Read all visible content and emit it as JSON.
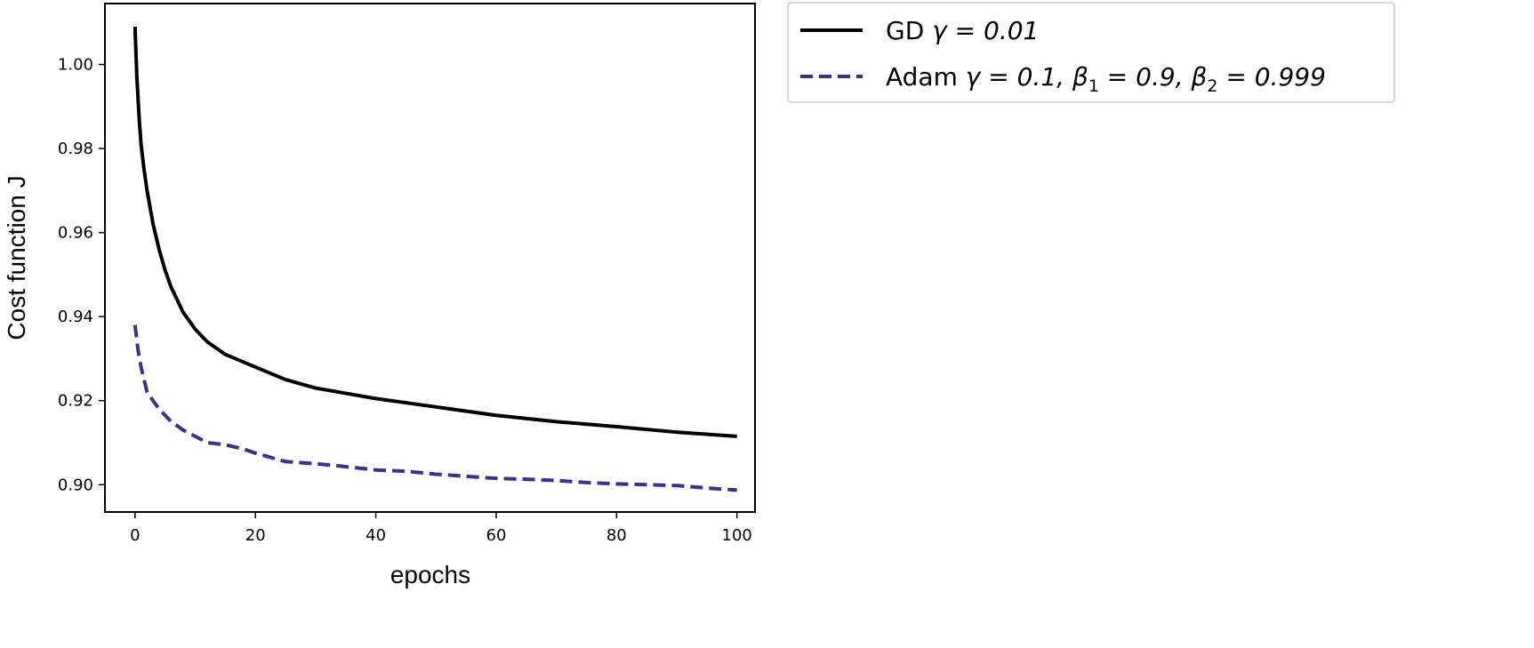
{
  "chart_data": {
    "type": "line",
    "xlabel": "epochs",
    "ylabel": "Cost function J",
    "xlim": [
      -5,
      103
    ],
    "ylim": [
      0.8935,
      1.0145
    ],
    "x_ticks": [
      0,
      20,
      40,
      60,
      80,
      100
    ],
    "x_tick_labels": [
      "0",
      "20",
      "40",
      "60",
      "80",
      "100"
    ],
    "y_ticks": [
      0.9,
      0.92,
      0.94,
      0.96,
      0.98,
      1.0
    ],
    "y_tick_labels": [
      "0.90",
      "0.92",
      "0.94",
      "0.96",
      "0.98",
      "1.00"
    ],
    "grid": false,
    "legend_position": "outside-top-right",
    "series": [
      {
        "name": "GD γ = 0.01",
        "color": "#000000",
        "style": "solid",
        "x": [
          0,
          0.3,
          0.7,
          1,
          1.5,
          2,
          3,
          4,
          5,
          6,
          8,
          10,
          12,
          15,
          20,
          25,
          30,
          40,
          50,
          60,
          70,
          80,
          90,
          100
        ],
        "y": [
          1.009,
          0.997,
          0.987,
          0.981,
          0.975,
          0.97,
          0.962,
          0.956,
          0.951,
          0.947,
          0.941,
          0.937,
          0.934,
          0.931,
          0.928,
          0.925,
          0.923,
          0.9205,
          0.9185,
          0.9165,
          0.915,
          0.9138,
          0.9125,
          0.9115
        ]
      },
      {
        "name": "Adam γ = 0.1, β₁ = 0.9, β₂ = 0.999",
        "color": "#3d2f8c",
        "style": "dashed",
        "x": [
          0,
          0.5,
          1,
          2,
          3,
          4,
          6,
          8,
          10,
          12,
          15,
          18,
          20,
          25,
          30,
          35,
          40,
          45,
          50,
          55,
          60,
          65,
          70,
          75,
          80,
          85,
          90,
          95,
          100
        ],
        "y": [
          0.938,
          0.932,
          0.928,
          0.922,
          0.92,
          0.918,
          0.915,
          0.913,
          0.9115,
          0.91,
          0.9095,
          0.9085,
          0.9075,
          0.9055,
          0.905,
          0.9043,
          0.9035,
          0.9032,
          0.9025,
          0.902,
          0.9015,
          0.9013,
          0.901,
          0.9005,
          0.9002,
          0.9,
          0.8998,
          0.8992,
          0.8987
        ]
      }
    ],
    "legend_entries": [
      {
        "series": 0,
        "prefix": "GD ",
        "math": [
          {
            "t": "γ = 0.01"
          }
        ]
      },
      {
        "series": 1,
        "prefix": "Adam ",
        "math": [
          {
            "t": "γ = 0.1, β"
          },
          {
            "sub": "1"
          },
          {
            "t": " = 0.9, β"
          },
          {
            "sub": "2"
          },
          {
            "t": " = 0.999"
          }
        ]
      }
    ]
  }
}
